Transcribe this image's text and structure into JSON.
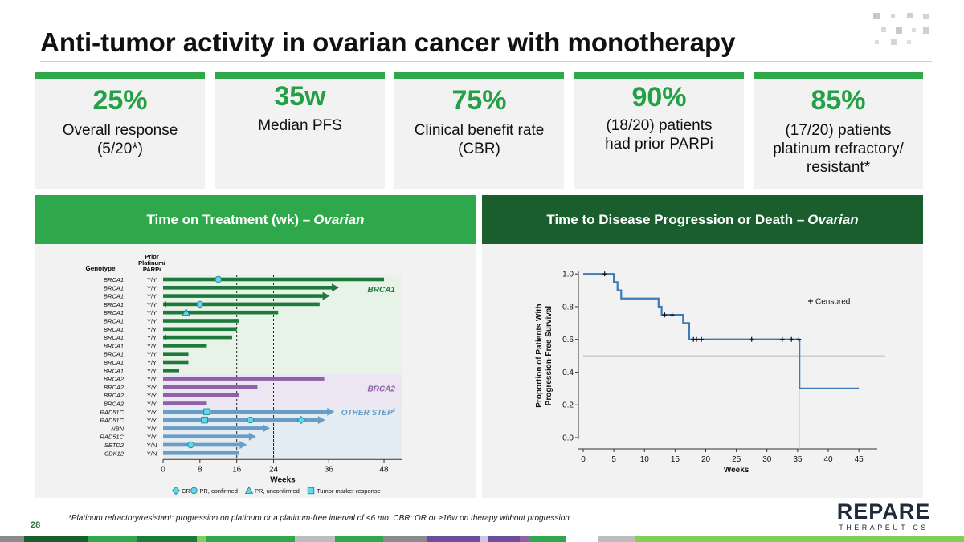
{
  "title": "Anti-tumor activity in ovarian cancer with monotherapy",
  "stats": [
    {
      "value": "25%",
      "label": "Overall response\n(5/20*)"
    },
    {
      "value": "35w",
      "label": "Median PFS"
    },
    {
      "value": "75%",
      "label": "Clinical benefit rate\n(CBR)"
    },
    {
      "value": "90%",
      "label": "(18/20) patients\nhad prior PARPi"
    },
    {
      "value": "85%",
      "label": "(17/20) patients\nplatinum refractory/\nresistant*"
    }
  ],
  "panels": {
    "left": {
      "title_main": "Time on Treatment (wk) –",
      "title_italic": "Ovarian"
    },
    "right": {
      "title_main": "Time to Disease Progression or Death –",
      "title_italic": "Ovarian"
    }
  },
  "colors": {
    "green": "#2ea84a",
    "dark_green": "#1a5e2e",
    "brca1": "#1e7a3a",
    "brca2": "#8e62a8",
    "other": "#6b9cc4",
    "km": "#3d7ab8",
    "marker": "#5fd8e8"
  },
  "chart_data": [
    {
      "type": "swimmer",
      "title": "Time on Treatment (wk) – Ovarian",
      "xlabel": "Weeks",
      "xlim": [
        0,
        52
      ],
      "xticks": [
        0,
        8,
        16,
        24,
        36,
        48
      ],
      "reference_lines": [
        16,
        24
      ],
      "col_genotype": "Genotype",
      "col_prior": "Prior\nPlatinum/\nPARPi",
      "groups": [
        {
          "name": "BRCA1",
          "label": "BRCA1"
        },
        {
          "name": "BRCA2",
          "label": "BRCA2"
        },
        {
          "name": "OTHER",
          "label": "OTHER STEP",
          "label_sup": "2"
        }
      ],
      "patients": [
        {
          "genotype": "BRCA1",
          "prior": "Y/Y",
          "weeks": 48,
          "group": "BRCA1",
          "ongoing": false,
          "start_tick": false,
          "markers": [
            {
              "type": "pr_confirmed",
              "week": 12
            }
          ]
        },
        {
          "genotype": "BRCA1",
          "prior": "Y/Y",
          "weeks": 37,
          "group": "BRCA1",
          "ongoing": true,
          "start_tick": false,
          "markers": []
        },
        {
          "genotype": "BRCA1",
          "prior": "Y/Y",
          "weeks": 35,
          "group": "BRCA1",
          "ongoing": true,
          "start_tick": false,
          "markers": []
        },
        {
          "genotype": "BRCA1",
          "prior": "Y/Y",
          "weeks": 34,
          "group": "BRCA1",
          "ongoing": false,
          "start_tick": true,
          "markers": [
            {
              "type": "pr_confirmed",
              "week": 8
            }
          ]
        },
        {
          "genotype": "BRCA1",
          "prior": "Y/Y",
          "weeks": 25,
          "group": "BRCA1",
          "ongoing": false,
          "start_tick": false,
          "markers": [
            {
              "type": "pr_unconfirmed",
              "week": 5
            }
          ]
        },
        {
          "genotype": "BRCA1",
          "prior": "Y/Y",
          "weeks": 16.5,
          "group": "BRCA1",
          "ongoing": false,
          "start_tick": false,
          "markers": []
        },
        {
          "genotype": "BRCA1",
          "prior": "Y/Y",
          "weeks": 16,
          "group": "BRCA1",
          "ongoing": false,
          "start_tick": false,
          "markers": []
        },
        {
          "genotype": "BRCA1",
          "prior": "Y/Y",
          "weeks": 15,
          "group": "BRCA1",
          "ongoing": false,
          "start_tick": true,
          "markers": []
        },
        {
          "genotype": "BRCA1",
          "prior": "Y/Y",
          "weeks": 9.5,
          "group": "BRCA1",
          "ongoing": false,
          "start_tick": false,
          "markers": []
        },
        {
          "genotype": "BRCA1",
          "prior": "Y/Y",
          "weeks": 5.5,
          "group": "BRCA1",
          "ongoing": false,
          "start_tick": false,
          "markers": []
        },
        {
          "genotype": "BRCA1",
          "prior": "Y/Y",
          "weeks": 5.5,
          "group": "BRCA1",
          "ongoing": false,
          "start_tick": false,
          "markers": []
        },
        {
          "genotype": "BRCA1",
          "prior": "Y/Y",
          "weeks": 3.5,
          "group": "BRCA1",
          "ongoing": false,
          "start_tick": false,
          "markers": []
        },
        {
          "genotype": "BRCA2",
          "prior": "Y/Y",
          "weeks": 35,
          "group": "BRCA2",
          "ongoing": false,
          "start_tick": false,
          "markers": []
        },
        {
          "genotype": "BRCA2",
          "prior": "Y/Y",
          "weeks": 20.5,
          "group": "BRCA2",
          "ongoing": false,
          "start_tick": false,
          "markers": []
        },
        {
          "genotype": "BRCA2",
          "prior": "Y/Y",
          "weeks": 16.5,
          "group": "BRCA2",
          "ongoing": false,
          "start_tick": false,
          "markers": []
        },
        {
          "genotype": "BRCA2",
          "prior": "Y/Y",
          "weeks": 9.5,
          "group": "BRCA2",
          "ongoing": false,
          "start_tick": false,
          "markers": []
        },
        {
          "genotype": "RAD51C",
          "prior": "Y/Y",
          "weeks": 36,
          "group": "OTHER",
          "ongoing": true,
          "start_tick": false,
          "markers": [
            {
              "type": "tumor_marker",
              "week": 9.5
            }
          ]
        },
        {
          "genotype": "RAD51C",
          "prior": "Y/Y",
          "weeks": 34,
          "group": "OTHER",
          "ongoing": true,
          "start_tick": false,
          "markers": [
            {
              "type": "tumor_marker",
              "week": 9
            },
            {
              "type": "pr_confirmed",
              "week": 19
            },
            {
              "type": "cr",
              "week": 30
            }
          ]
        },
        {
          "genotype": "NBN",
          "prior": "Y/Y",
          "weeks": 22,
          "group": "OTHER",
          "ongoing": true,
          "start_tick": false,
          "markers": []
        },
        {
          "genotype": "RAD51C",
          "prior": "Y/Y",
          "weeks": 19,
          "group": "OTHER",
          "ongoing": true,
          "start_tick": false,
          "markers": []
        },
        {
          "genotype": "SETD2",
          "prior": "Y/N",
          "weeks": 17,
          "group": "OTHER",
          "ongoing": true,
          "start_tick": false,
          "markers": [
            {
              "type": "pr_confirmed",
              "week": 6
            }
          ]
        },
        {
          "genotype": "CDK12",
          "prior": "Y/N",
          "weeks": 16.5,
          "group": "OTHER",
          "ongoing": false,
          "start_tick": false,
          "markers": []
        }
      ],
      "legend": [
        {
          "type": "cr",
          "label": "CR"
        },
        {
          "type": "pr_confirmed",
          "label": "PR, confirmed"
        },
        {
          "type": "pr_unconfirmed",
          "label": "PR, unconfirmed"
        },
        {
          "type": "tumor_marker",
          "label": "Tumor marker response"
        }
      ]
    },
    {
      "type": "kaplan-meier",
      "title": "Time to Disease Progression or Death – Ovarian",
      "xlabel": "Weeks",
      "ylabel": "Proportion of Patients With\nProgression-Free Survival",
      "xlim": [
        0,
        48
      ],
      "ylim": [
        0,
        1.05
      ],
      "xticks": [
        0,
        5,
        10,
        15,
        20,
        25,
        30,
        35,
        40,
        45
      ],
      "yticks": [
        0.0,
        0.2,
        0.4,
        0.6,
        0.8,
        1.0
      ],
      "ytick_labels": [
        "0.0",
        "0.2",
        "0.4",
        "0.6",
        "0.8",
        "1.0"
      ],
      "steps": [
        [
          0,
          1.0
        ],
        [
          5,
          0.95
        ],
        [
          5.6,
          0.9
        ],
        [
          6.2,
          0.85
        ],
        [
          12.3,
          0.8
        ],
        [
          12.8,
          0.75
        ],
        [
          16.3,
          0.7
        ],
        [
          17.3,
          0.6
        ],
        [
          35.3,
          0.3
        ],
        [
          45,
          0.3
        ]
      ],
      "censored": [
        [
          3.5,
          1.0
        ],
        [
          13.3,
          0.75
        ],
        [
          14.5,
          0.75
        ],
        [
          18,
          0.6
        ],
        [
          18.5,
          0.6
        ],
        [
          19.3,
          0.6
        ],
        [
          27.5,
          0.6
        ],
        [
          32.5,
          0.6
        ],
        [
          34,
          0.6
        ],
        [
          35.2,
          0.6
        ]
      ],
      "median_line": {
        "y": 0.5,
        "x": 35.3
      },
      "legend": "Censored"
    }
  ],
  "footnote": "*Platinum refractory/resistant: progression on platinum or a platinum-free interval of <6 mo. CBR: OR or ≥16w on therapy without progression",
  "page_number": "28",
  "brand": {
    "name": "REPARE",
    "sub": "THERAPEUTICS"
  }
}
